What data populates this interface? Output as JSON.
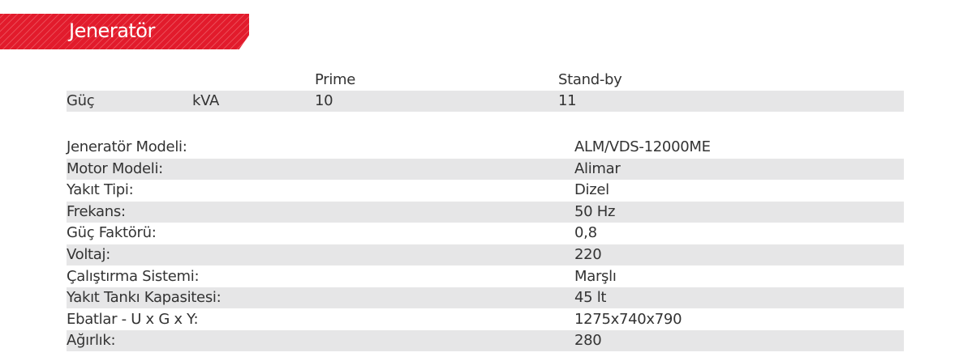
{
  "title": "Jeneratör",
  "power": {
    "headers": [
      "Prime",
      "Stand-by"
    ],
    "label": "Güç",
    "unit": "kVA",
    "prime": "10",
    "standby": "11"
  },
  "specs": [
    {
      "label": "Jeneratör Modeli:",
      "value": "ALM/VDS-12000ME"
    },
    {
      "label": "Motor Modeli:",
      "value": "Alimar"
    },
    {
      "label": "Yakıt Tipi:",
      "value": "Dizel"
    },
    {
      "label": "Frekans:",
      "value": "50 Hz"
    },
    {
      "label": "Güç Faktörü:",
      "value": "0,8"
    },
    {
      "label": "Voltaj:",
      "value": "220"
    },
    {
      "label": "Çalıştırma Sistemi:",
      "value": "Marşlı"
    },
    {
      "label": "Yakıt Tankı Kapasitesi:",
      "value": "45 lt"
    },
    {
      "label": "Ebatlar - U x G x Y:",
      "value": "1275x740x790"
    },
    {
      "label": "Ağırlık:",
      "value": "280"
    }
  ]
}
